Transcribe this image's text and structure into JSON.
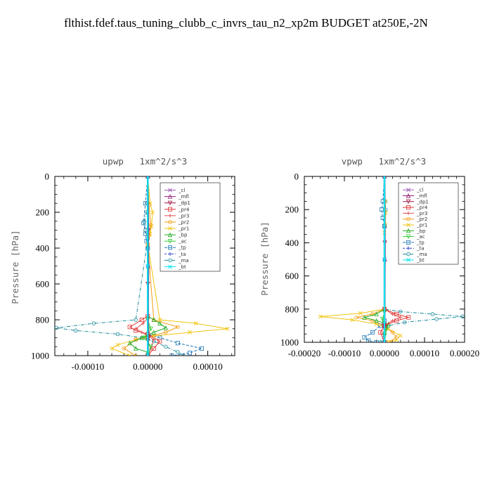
{
  "title": "flthist.fdef.taus_tuning_clubb_c_invrs_tau_n2_xp2m  BUDGET at250E,-2N",
  "legend_colors": {
    "_cl": "#9b59b6",
    "_mfl": "#8e1b6e",
    "_dp1": "#a0153e",
    "_pr4": "#e03030",
    "_pr3": "#e05050",
    "_pr2": "#f39c12",
    "_pr1": "#f1c40f",
    "_bp": "#22aa22",
    "_ac": "#33cc33",
    "_tp": "#1f77b4",
    "_ta": "#3344cc",
    "_ma": "#1a8a9a",
    "_bt": "#00e5ee"
  },
  "chart_data": [
    {
      "type": "line",
      "title": "upwp   1xm^2/s^3",
      "ylabel": "Pressure [hPa]",
      "xlabel": "",
      "xlim": [
        -0.000155,
        0.000145
      ],
      "ylim": [
        1000,
        0
      ],
      "xticks": [
        "-0.00010",
        "0.00000",
        "0.00010"
      ],
      "xtick_values": [
        -0.0001,
        0.0,
        0.0001
      ],
      "yticks": [
        "0",
        "200",
        "400",
        "600",
        "800",
        "1000"
      ],
      "ytick_values": [
        0,
        200,
        400,
        600,
        800,
        1000
      ],
      "legend": [
        "_cl",
        "_mfl",
        "_dp1",
        "_pr4",
        "_pr3",
        "_pr2",
        "_pr1",
        "_bp",
        "_ac",
        "_tp",
        "_ta",
        "_ma",
        "_bt"
      ],
      "legend_placement": "top-right",
      "series": [
        {
          "name": "_ma",
          "x": [
            0,
            0,
            -2e-06,
            -6e-06,
            -4e-06,
            0,
            -2e-05,
            -9e-05,
            -0.000152,
            -0.00012,
            -5e-05,
            -1e-05,
            1e-05,
            3e-05,
            5e-05,
            6e-05
          ],
          "y": [
            0,
            150,
            200,
            250,
            300,
            350,
            800,
            820,
            845,
            860,
            880,
            900,
            920,
            950,
            980,
            1000
          ]
        },
        {
          "name": "_tp",
          "x": [
            0,
            -4e-06,
            -7e-06,
            -4e-06,
            -2e-06,
            0,
            0,
            2e-05,
            5e-05,
            9e-05,
            7e-05,
            4e-05
          ],
          "y": [
            0,
            150,
            260,
            320,
            360,
            400,
            880,
            900,
            930,
            960,
            985,
            1000
          ]
        },
        {
          "name": "_pr1",
          "x": [
            0,
            4e-06,
            8e-06,
            6e-06,
            4e-06,
            0,
            2e-05,
            8e-05,
            0.000133,
            7e-05,
            1e-05,
            -2e-05,
            -5e-05,
            -6e-05,
            -3e-05
          ],
          "y": [
            0,
            150,
            200,
            280,
            320,
            380,
            800,
            820,
            850,
            870,
            890,
            910,
            940,
            960,
            1000
          ]
        },
        {
          "name": "_pr2",
          "x": [
            0,
            2e-06,
            5e-06,
            2e-06,
            0,
            1e-05,
            5e-05,
            3e-05,
            -2e-05,
            -4e-05,
            -2e-05
          ],
          "y": [
            0,
            160,
            270,
            330,
            380,
            800,
            840,
            870,
            910,
            960,
            1000
          ]
        },
        {
          "name": "_bp",
          "x": [
            0,
            0,
            1e-05,
            2e-05,
            3e-05,
            1e-05,
            -1e-05,
            -3e-05,
            -2e-05,
            0,
            0
          ],
          "y": [
            0,
            780,
            800,
            820,
            845,
            870,
            900,
            930,
            960,
            980,
            1000
          ]
        },
        {
          "name": "_pr4",
          "x": [
            0,
            0,
            -1e-05,
            -3e-05,
            -2e-05,
            0,
            2e-05,
            1e-05,
            0
          ],
          "y": [
            0,
            780,
            800,
            840,
            860,
            880,
            920,
            960,
            1000
          ]
        },
        {
          "name": "_pr3",
          "x": [
            0,
            0,
            -8e-06,
            -2e-05,
            -1e-05,
            1e-05,
            5e-06,
            0
          ],
          "y": [
            0,
            790,
            820,
            850,
            870,
            910,
            960,
            1000
          ]
        },
        {
          "name": "_ac",
          "x": [
            0,
            0,
            5e-06,
            -5e-06,
            5e-06,
            0
          ],
          "y": [
            0,
            800,
            850,
            900,
            950,
            1000
          ]
        },
        {
          "name": "_dp1",
          "x": [
            0,
            1e-06,
            0,
            1e-06,
            0
          ],
          "y": [
            0,
            300,
            600,
            900,
            1000
          ]
        },
        {
          "name": "_mfl",
          "x": [
            0,
            1e-06,
            0,
            0
          ],
          "y": [
            0,
            500,
            900,
            1000
          ]
        },
        {
          "name": "_cl",
          "x": [
            0,
            0,
            0
          ],
          "y": [
            0,
            500,
            1000
          ]
        },
        {
          "name": "_ta",
          "x": [
            0,
            0,
            0
          ],
          "y": [
            0,
            500,
            1000
          ]
        },
        {
          "name": "_bt",
          "x": [
            0,
            0,
            0
          ],
          "y": [
            0,
            500,
            1000
          ]
        }
      ]
    },
    {
      "type": "line",
      "title": "vpwp   1xm^2/s^3",
      "ylabel": "Pressure [hPa]",
      "xlabel": "",
      "xlim": [
        -0.0002,
        0.0002
      ],
      "ylim": [
        1000,
        0
      ],
      "xticks": [
        "-0.00020",
        "-0.00010",
        "0.00000",
        "0.00010",
        "0.00020"
      ],
      "xtick_values": [
        -0.0002,
        -0.0001,
        0.0,
        0.0001,
        0.0002
      ],
      "yticks": [
        "0",
        "200",
        "400",
        "600",
        "800",
        "1000"
      ],
      "ytick_values": [
        0,
        200,
        400,
        600,
        800,
        1000
      ],
      "legend": [
        "_cl",
        "_mfl",
        "_dp1",
        "_pr4",
        "_pr3",
        "_pr2",
        "_pr1",
        "_bp",
        "_ac",
        "_tp",
        "_ta",
        "_ma",
        "_bt"
      ],
      "legend_placement": "top-right",
      "series": [
        {
          "name": "_ma",
          "x": [
            0,
            2e-06,
            3e-06,
            0,
            0,
            4e-05,
            0.00012,
            0.000195,
            0.00013,
            5e-05,
            1e-05,
            0,
            -1e-05
          ],
          "y": [
            0,
            150,
            200,
            300,
            800,
            815,
            830,
            845,
            860,
            880,
            900,
            950,
            1000
          ]
        },
        {
          "name": "_tp",
          "x": [
            0,
            -4e-06,
            -7e-06,
            -4e-06,
            0,
            0,
            -1e-05,
            -3e-05,
            -5e-05,
            -4e-05,
            -2e-05
          ],
          "y": [
            0,
            150,
            200,
            250,
            300,
            870,
            900,
            940,
            970,
            990,
            1000
          ]
        },
        {
          "name": "_pr1",
          "x": [
            0,
            2e-06,
            3e-06,
            2e-06,
            0,
            0,
            -6e-05,
            -0.00016,
            -8e-05,
            -2e-05,
            1e-05,
            4e-05,
            3e-05,
            1e-05
          ],
          "y": [
            0,
            150,
            220,
            290,
            340,
            800,
            825,
            845,
            865,
            890,
            920,
            960,
            985,
            1000
          ]
        },
        {
          "name": "_pr2",
          "x": [
            0,
            0,
            -3e-05,
            -7e-05,
            -3e-05,
            0,
            2e-05,
            3e-05,
            1e-05
          ],
          "y": [
            0,
            800,
            830,
            850,
            870,
            900,
            940,
            970,
            1000
          ]
        },
        {
          "name": "_bp",
          "x": [
            0,
            0,
            -2e-05,
            -5e-05,
            -2e-05,
            1e-05,
            0,
            0
          ],
          "y": [
            0,
            800,
            830,
            850,
            870,
            890,
            940,
            1000
          ]
        },
        {
          "name": "_pr4",
          "x": [
            0,
            0,
            3e-05,
            6e-05,
            3e-05,
            0,
            -1e-05,
            0
          ],
          "y": [
            0,
            800,
            830,
            850,
            870,
            900,
            940,
            1000
          ]
        },
        {
          "name": "_pr3",
          "x": [
            0,
            0,
            2e-05,
            4e-05,
            2e-05,
            0,
            0
          ],
          "y": [
            0,
            800,
            830,
            850,
            870,
            900,
            1000
          ]
        },
        {
          "name": "_ac",
          "x": [
            0,
            0,
            -5e-06,
            5e-06,
            0
          ],
          "y": [
            0,
            820,
            860,
            920,
            1000
          ]
        },
        {
          "name": "_dp1",
          "x": [
            0,
            1e-06,
            0,
            0
          ],
          "y": [
            0,
            400,
            900,
            1000
          ]
        },
        {
          "name": "_mfl",
          "x": [
            0,
            1e-06,
            0,
            0
          ],
          "y": [
            0,
            500,
            900,
            1000
          ]
        },
        {
          "name": "_cl",
          "x": [
            0,
            0,
            0
          ],
          "y": [
            0,
            500,
            1000
          ]
        },
        {
          "name": "_ta",
          "x": [
            0,
            0,
            0
          ],
          "y": [
            0,
            500,
            1000
          ]
        },
        {
          "name": "_bt",
          "x": [
            0,
            0,
            0
          ],
          "y": [
            0,
            500,
            1000
          ]
        }
      ]
    }
  ]
}
